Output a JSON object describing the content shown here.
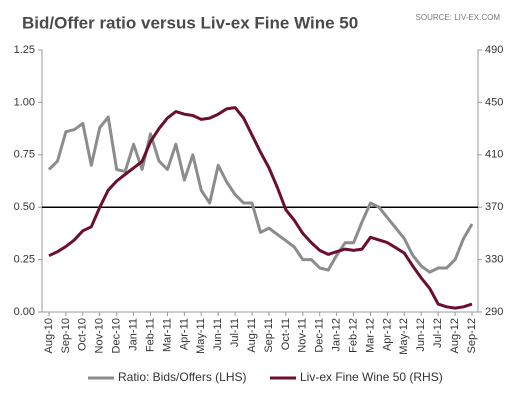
{
  "chart_data": {
    "type": "line",
    "title": "Bid/Offer ratio versus Liv-ex Fine Wine 50",
    "source": "SOURCE: LIV-EX.COM",
    "categories": [
      "Aug-10",
      null,
      "Sep-10",
      null,
      "Oct-10",
      null,
      "Nov-10",
      null,
      "Dec-10",
      null,
      "Jan-11",
      null,
      "Feb-11",
      null,
      "Mar-11",
      null,
      "Apr-11",
      null,
      "May-11",
      null,
      "Jun-11",
      null,
      "Jul-11",
      null,
      "Aug-11",
      null,
      "Sep-11",
      null,
      "Oct-11",
      null,
      "Nov-11",
      null,
      "Dec-11",
      null,
      "Jan-12",
      null,
      "Feb-12",
      null,
      "Mar-12",
      null,
      "Apr-12",
      null,
      "May-12",
      null,
      "Jun-12",
      null,
      "Jul-12",
      null,
      "Aug-12",
      null,
      "Sep-12"
    ],
    "series": [
      {
        "name": "Ratio: Bids/Offers (LHS)",
        "color": "#8c8c8c",
        "axis": "y",
        "values": [
          0.68,
          0.72,
          0.86,
          0.87,
          0.9,
          0.7,
          0.88,
          0.93,
          0.68,
          0.67,
          0.8,
          0.68,
          0.85,
          0.72,
          0.68,
          0.8,
          0.63,
          0.75,
          0.58,
          0.52,
          0.7,
          0.62,
          0.56,
          0.52,
          0.52,
          0.38,
          0.4,
          0.37,
          0.34,
          0.31,
          0.25,
          0.25,
          0.21,
          0.2,
          0.27,
          0.33,
          0.33,
          0.43,
          0.52,
          0.5,
          0.45,
          0.4,
          0.35,
          0.27,
          0.22,
          0.19,
          0.21,
          0.21,
          0.25,
          0.35,
          0.42
        ]
      },
      {
        "name": "Liv-ex Fine Wine 50 (RHS)",
        "color": "#6b0f2b",
        "axis": "y2",
        "values": [
          333,
          336,
          340,
          345,
          352,
          355,
          370,
          383,
          390,
          395,
          400,
          405,
          420,
          430,
          438,
          443,
          441,
          440,
          437,
          438,
          441,
          445,
          446,
          438,
          425,
          412,
          400,
          385,
          368,
          360,
          350,
          343,
          337,
          334,
          336,
          338,
          337,
          338,
          347,
          345,
          343,
          339,
          335,
          325,
          316,
          308,
          296,
          294,
          293,
          294,
          296
        ]
      }
    ],
    "ylim": [
      0,
      1.25
    ],
    "yticks": [
      {
        "value": 0,
        "label": "0.00"
      },
      0.25,
      {
        "value": 0.5,
        "label": "0.50"
      },
      0.75,
      {
        "value": 1,
        "label": "1.00"
      },
      1.25
    ],
    "y2lim": [
      290,
      490
    ],
    "y2ticks": [
      290,
      330,
      370,
      410,
      450,
      490
    ],
    "ref_line": 0.5,
    "ref_color": "#000000",
    "legend": "bottom"
  }
}
